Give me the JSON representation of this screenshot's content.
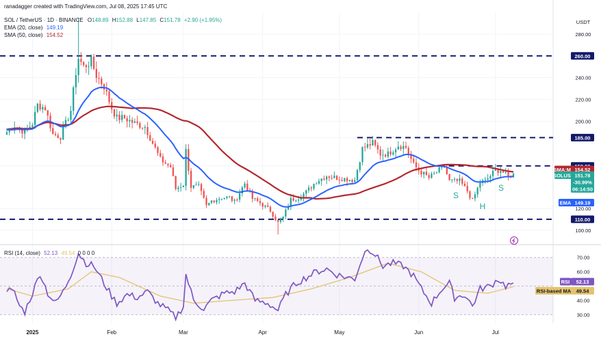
{
  "header": {
    "watermark": "ranadagger created with TradingView.com, Jul 08, 2025 17:45 UTC",
    "symbol_line": "SOL / TetherUS · 1D · BINANCE",
    "ohlc": {
      "o_label": "O",
      "o": "148.89",
      "h_label": "H",
      "h": "152.88",
      "l_label": "L",
      "l": "147.85",
      "c_label": "C",
      "c": "151.78",
      "change": "+2.90 (+1.95%)"
    },
    "ema_label": "EMA (20, close)",
    "ema_value": "149.19",
    "sma_label": "SMA (50, close)",
    "sma_value": "154.52",
    "rsi_label": "RSI (14, close)",
    "rsi_value": "52.13",
    "rsi_ma_value": "49.54",
    "rsi_extra": "0 0 0 0"
  },
  "axis": {
    "currency": "USDT",
    "price_ticks": [
      "280.00",
      "260.00",
      "240.00",
      "220.00",
      "200.00",
      "185.00",
      "159.00",
      "120.00",
      "110.00",
      "100.00"
    ],
    "rsi_ticks": [
      "70.00",
      "60.00",
      "40.00",
      "30.00"
    ],
    "months": [
      "2025",
      "Feb",
      "Mar",
      "Apr",
      "May",
      "Jun",
      "Jul"
    ]
  },
  "tags": {
    "sma_name": "SMA:MA",
    "sma_val": "154.52",
    "sym_name": "SOLUSDT",
    "sym_val": "151.78",
    "sym_chg": "-30.99%",
    "sym_time": "06:14:50",
    "ema_name": "EMA",
    "ema_val": "149.19",
    "level_260": "260.00",
    "level_185": "185.00",
    "level_159": "159.00",
    "level_110": "110.00",
    "rsi_name": "RSI",
    "rsi_val": "52.13",
    "rsi_ma_name": "RSI-based MA",
    "rsi_ma_val": "49.54"
  },
  "pattern_labels": {
    "left_shoulder": "S",
    "head": "H",
    "right_shoulder": "S"
  },
  "colors": {
    "up": "#26a69a",
    "down": "#ef5350",
    "ema": "#2962ff",
    "sma": "#b2282e",
    "rsi": "#7e57c2",
    "rsi_ma": "#e3c46d",
    "level": "#131a6b"
  },
  "chart_data": [
    {
      "type": "candlestick",
      "title": "SOL / TetherUS · 1D · BINANCE",
      "x_label": "",
      "y_label": "USDT",
      "x_range": [
        "2024-12-22",
        "2025-07-08"
      ],
      "y_range": [
        88,
        300
      ],
      "grid": true,
      "key_dates": [
        "2025-01-01",
        "2025-02-01",
        "2025-03-01",
        "2025-04-01",
        "2025-05-01",
        "2025-06-01",
        "2025-07-01"
      ],
      "close_path": [
        [
          "2024-12-22",
          190
        ],
        [
          "2024-12-25",
          196
        ],
        [
          "2024-12-29",
          190
        ],
        [
          "2025-01-01",
          198
        ],
        [
          "2025-01-03",
          215
        ],
        [
          "2025-01-06",
          212
        ],
        [
          "2025-01-09",
          188
        ],
        [
          "2025-01-12",
          186
        ],
        [
          "2025-01-16",
          210
        ],
        [
          "2025-01-18",
          245
        ],
        [
          "2025-01-19",
          258
        ],
        [
          "2025-01-21",
          250
        ],
        [
          "2025-01-24",
          255
        ],
        [
          "2025-01-26",
          242
        ],
        [
          "2025-01-29",
          232
        ],
        [
          "2025-02-01",
          212
        ],
        [
          "2025-02-03",
          203
        ],
        [
          "2025-02-06",
          203
        ],
        [
          "2025-02-10",
          198
        ],
        [
          "2025-02-14",
          195
        ],
        [
          "2025-02-17",
          180
        ],
        [
          "2025-02-20",
          165
        ],
        [
          "2025-02-24",
          158
        ],
        [
          "2025-02-26",
          138
        ],
        [
          "2025-03-01",
          142
        ],
        [
          "2025-03-02",
          173
        ],
        [
          "2025-03-04",
          140
        ],
        [
          "2025-03-07",
          140
        ],
        [
          "2025-03-10",
          122
        ],
        [
          "2025-03-12",
          127
        ],
        [
          "2025-03-16",
          130
        ],
        [
          "2025-03-19",
          130
        ],
        [
          "2025-03-21",
          126
        ],
        [
          "2025-03-25",
          143
        ],
        [
          "2025-03-28",
          129
        ],
        [
          "2025-03-31",
          125
        ],
        [
          "2025-04-04",
          118
        ],
        [
          "2025-04-07",
          107
        ],
        [
          "2025-04-09",
          112
        ],
        [
          "2025-04-12",
          128
        ],
        [
          "2025-04-15",
          130
        ],
        [
          "2025-04-18",
          135
        ],
        [
          "2025-04-22",
          145
        ],
        [
          "2025-04-26",
          150
        ],
        [
          "2025-04-30",
          148
        ],
        [
          "2025-05-04",
          147
        ],
        [
          "2025-05-07",
          146
        ],
        [
          "2025-05-10",
          175
        ],
        [
          "2025-05-14",
          180
        ],
        [
          "2025-05-17",
          170
        ],
        [
          "2025-05-20",
          170
        ],
        [
          "2025-05-24",
          178
        ],
        [
          "2025-05-27",
          176
        ],
        [
          "2025-05-30",
          160
        ],
        [
          "2025-06-01",
          155
        ],
        [
          "2025-06-05",
          148
        ],
        [
          "2025-06-09",
          155
        ],
        [
          "2025-06-11",
          158
        ],
        [
          "2025-06-13",
          145
        ],
        [
          "2025-06-17",
          145
        ],
        [
          "2025-06-20",
          136
        ],
        [
          "2025-06-22",
          127
        ],
        [
          "2025-06-25",
          144
        ],
        [
          "2025-06-27",
          145
        ],
        [
          "2025-07-01",
          155
        ],
        [
          "2025-07-03",
          155
        ],
        [
          "2025-07-06",
          149
        ],
        [
          "2025-07-08",
          151.78
        ]
      ],
      "last_candle": {
        "date": "2025-07-08",
        "open": 148.89,
        "high": 152.88,
        "low": 147.85,
        "close": 151.78
      },
      "highs_lows": {
        "high": [
          "2025-01-19",
          295
        ],
        "low": [
          "2025-04-07",
          96
        ]
      },
      "series": [
        {
          "name": "EMA (20, close)",
          "indicator": "EMA",
          "period": 20,
          "last": 149.19
        },
        {
          "name": "SMA (50, close)",
          "indicator": "SMA",
          "period": 50,
          "last": 154.52
        }
      ],
      "horizontal_levels": [
        260,
        185,
        159,
        110
      ],
      "pattern": {
        "left_shoulder": [
          "2025-06-13",
          145
        ],
        "head": [
          "2025-06-22",
          127
        ],
        "right_shoulder": [
          "2025-07-02",
          150
        ],
        "neckline": 159
      }
    },
    {
      "type": "line",
      "title": "RSI (14, close)",
      "x_range": [
        "2024-12-22",
        "2025-07-08"
      ],
      "y_range": [
        24,
        78
      ],
      "bands": [
        30,
        70
      ],
      "series": [
        {
          "name": "RSI",
          "last": 52.13,
          "points": [
            [
              "2024-12-22",
              48
            ],
            [
              "2024-12-25",
              45
            ],
            [
              "2024-12-27",
              36
            ],
            [
              "2024-12-29",
              32
            ],
            [
              "2025-01-01",
              45
            ],
            [
              "2025-01-04",
              59
            ],
            [
              "2025-01-07",
              45
            ],
            [
              "2025-01-10",
              38
            ],
            [
              "2025-01-13",
              46
            ],
            [
              "2025-01-16",
              58
            ],
            [
              "2025-01-19",
              73
            ],
            [
              "2025-01-22",
              66
            ],
            [
              "2025-01-25",
              64
            ],
            [
              "2025-01-28",
              55
            ],
            [
              "2025-02-01",
              43
            ],
            [
              "2025-02-03",
              38
            ],
            [
              "2025-02-07",
              44
            ],
            [
              "2025-02-11",
              42
            ],
            [
              "2025-02-15",
              46
            ],
            [
              "2025-02-19",
              38
            ],
            [
              "2025-02-23",
              33
            ],
            [
              "2025-02-26",
              28
            ],
            [
              "2025-03-01",
              36
            ],
            [
              "2025-03-02",
              58
            ],
            [
              "2025-03-05",
              40
            ],
            [
              "2025-03-09",
              34
            ],
            [
              "2025-03-12",
              40
            ],
            [
              "2025-03-17",
              45
            ],
            [
              "2025-03-21",
              46
            ],
            [
              "2025-03-25",
              52
            ],
            [
              "2025-03-29",
              40
            ],
            [
              "2025-04-03",
              38
            ],
            [
              "2025-04-07",
              33
            ],
            [
              "2025-04-10",
              44
            ],
            [
              "2025-04-14",
              52
            ],
            [
              "2025-04-18",
              56
            ],
            [
              "2025-04-22",
              60
            ],
            [
              "2025-04-26",
              62
            ],
            [
              "2025-04-30",
              58
            ],
            [
              "2025-05-04",
              56
            ],
            [
              "2025-05-07",
              55
            ],
            [
              "2025-05-10",
              70
            ],
            [
              "2025-05-12",
              77
            ],
            [
              "2025-05-15",
              72
            ],
            [
              "2025-05-18",
              64
            ],
            [
              "2025-05-22",
              66
            ],
            [
              "2025-05-26",
              64
            ],
            [
              "2025-05-30",
              57
            ],
            [
              "2025-06-02",
              48
            ],
            [
              "2025-06-06",
              38
            ],
            [
              "2025-06-10",
              48
            ],
            [
              "2025-06-13",
              52
            ],
            [
              "2025-06-15",
              42
            ],
            [
              "2025-06-19",
              44
            ],
            [
              "2025-06-22",
              36
            ],
            [
              "2025-06-25",
              48
            ],
            [
              "2025-06-29",
              50
            ],
            [
              "2025-07-02",
              55
            ],
            [
              "2025-07-05",
              50
            ],
            [
              "2025-07-08",
              52.13
            ]
          ]
        },
        {
          "name": "RSI-based MA",
          "last": 49.54,
          "points": [
            [
              "2024-12-22",
              48
            ],
            [
              "2025-01-01",
              43
            ],
            [
              "2025-01-15",
              48
            ],
            [
              "2025-01-24",
              60
            ],
            [
              "2025-02-04",
              56
            ],
            [
              "2025-02-20",
              43
            ],
            [
              "2025-03-05",
              38
            ],
            [
              "2025-03-20",
              40
            ],
            [
              "2025-04-05",
              42
            ],
            [
              "2025-04-20",
              48
            ],
            [
              "2025-05-05",
              56
            ],
            [
              "2025-05-20",
              66
            ],
            [
              "2025-06-02",
              60
            ],
            [
              "2025-06-15",
              47
            ],
            [
              "2025-06-28",
              45
            ],
            [
              "2025-07-08",
              49.54
            ]
          ]
        }
      ]
    }
  ]
}
